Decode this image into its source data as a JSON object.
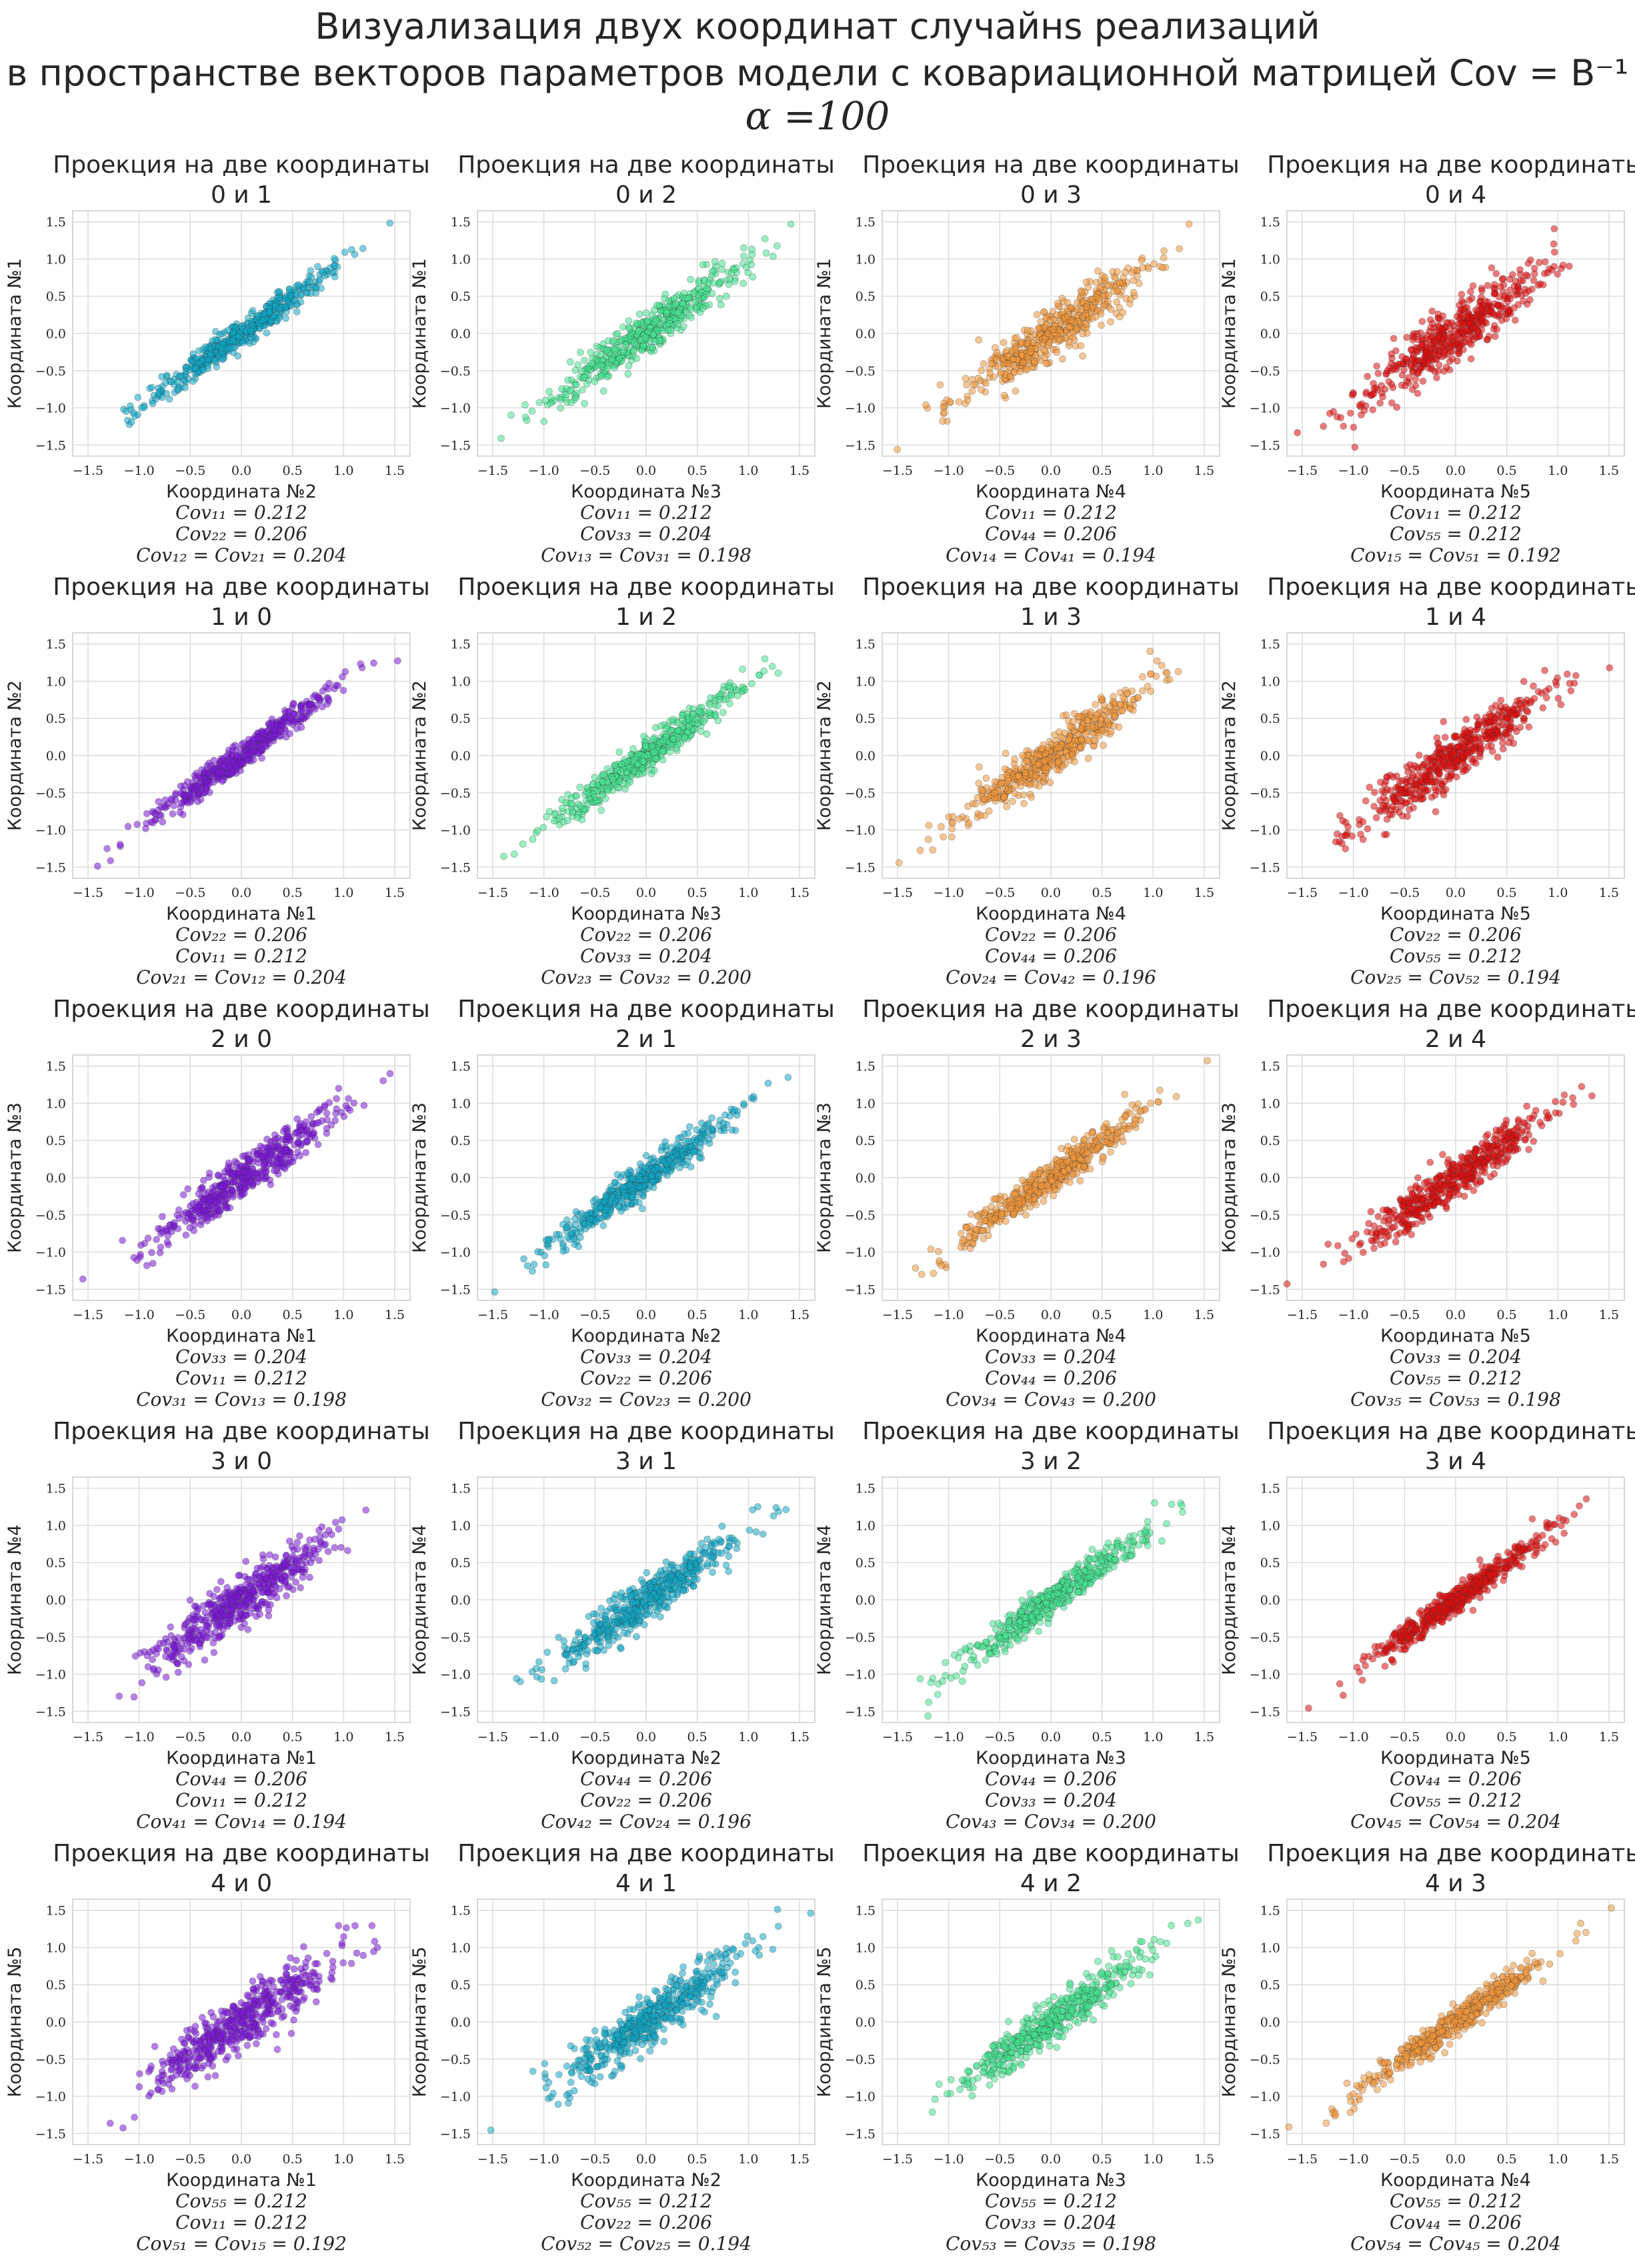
{
  "title": {
    "line1": "Визуализация двух координат случайнs реализаций",
    "line2": "в пространстве векторов параметров модели с ковариационной матрицей Cov = B⁻¹",
    "line3": "α =100"
  },
  "subplot_title_prefix": "Проекция на две координаты",
  "colors": [
    "#7b16d9",
    "#0ea7c7",
    "#44e38f",
    "#f3983a",
    "#e00d0d"
  ],
  "chart_data": {
    "type": "scatter",
    "n_points_per_panel": 500,
    "xlim": [
      -1.65,
      1.65
    ],
    "ylim": [
      -1.65,
      1.65
    ],
    "ticks": [
      -1.5,
      -1.0,
      -0.5,
      0.0,
      0.5,
      1.0,
      1.5
    ],
    "tick_labels": [
      "−1.5",
      "−1.0",
      "−0.5",
      "0.0",
      "0.5",
      "1.0",
      "1.5"
    ],
    "grid": true,
    "rows": [
      {
        "coord": 0,
        "ylabel": "Координата №1"
      },
      {
        "coord": 1,
        "ylabel": "Координата №2"
      },
      {
        "coord": 2,
        "ylabel": "Координата №3"
      },
      {
        "coord": 3,
        "ylabel": "Координата №4"
      },
      {
        "coord": 4,
        "ylabel": "Координата №5"
      }
    ],
    "panels": [
      [
        {
          "pair": "0 и 1",
          "color_idx": 1,
          "xlabel": "Координата №2",
          "cov1": "Cov₁₁ = 0.212",
          "cov2": "Cov₂₂ = 0.206",
          "cov3": "Cov₁₂ = Cov₂₁ = 0.204",
          "corr": 0.98
        },
        {
          "pair": "0 и 2",
          "color_idx": 2,
          "xlabel": "Координата №3",
          "cov1": "Cov₁₁ = 0.212",
          "cov2": "Cov₃₃ = 0.204",
          "cov3": "Cov₁₃ = Cov₃₁ = 0.198",
          "corr": 0.95
        },
        {
          "pair": "0 и 3",
          "color_idx": 3,
          "xlabel": "Координата №4",
          "cov1": "Cov₁₁ = 0.212",
          "cov2": "Cov₄₄ = 0.206",
          "cov3": "Cov₁₄ = Cov₄₁ = 0.194",
          "corr": 0.93
        },
        {
          "pair": "0 и 4",
          "color_idx": 4,
          "xlabel": "Координата №5",
          "cov1": "Cov₁₁ = 0.212",
          "cov2": "Cov₅₅ = 0.212",
          "cov3": "Cov₁₅ = Cov₅₁ = 0.192",
          "corr": 0.91
        }
      ],
      [
        {
          "pair": "1 и 0",
          "color_idx": 0,
          "xlabel": "Координата №1",
          "cov1": "Cov₂₂ = 0.206",
          "cov2": "Cov₁₁ = 0.212",
          "cov3": "Cov₂₁ = Cov₁₂ = 0.204",
          "corr": 0.98
        },
        {
          "pair": "1 и 2",
          "color_idx": 2,
          "xlabel": "Координата №3",
          "cov1": "Cov₂₂ = 0.206",
          "cov2": "Cov₃₃ = 0.204",
          "cov3": "Cov₂₃ = Cov₃₂ = 0.200",
          "corr": 0.97
        },
        {
          "pair": "1 и 3",
          "color_idx": 3,
          "xlabel": "Координата №4",
          "cov1": "Cov₂₂ = 0.206",
          "cov2": "Cov₄₄ = 0.206",
          "cov3": "Cov₂₄ = Cov₄₂ = 0.196",
          "corr": 0.95
        },
        {
          "pair": "1 и 4",
          "color_idx": 4,
          "xlabel": "Координата №5",
          "cov1": "Cov₂₂ = 0.206",
          "cov2": "Cov₅₅ = 0.212",
          "cov3": "Cov₂₅ = Cov₅₂ = 0.194",
          "corr": 0.93
        }
      ],
      [
        {
          "pair": "2 и 0",
          "color_idx": 0,
          "xlabel": "Координата №1",
          "cov1": "Cov₃₃ = 0.204",
          "cov2": "Cov₁₁ = 0.212",
          "cov3": "Cov₃₁ = Cov₁₃ = 0.198",
          "corr": 0.95
        },
        {
          "pair": "2 и 1",
          "color_idx": 1,
          "xlabel": "Координата №2",
          "cov1": "Cov₃₃ = 0.204",
          "cov2": "Cov₂₂ = 0.206",
          "cov3": "Cov₃₂ = Cov₂₃ = 0.200",
          "corr": 0.97
        },
        {
          "pair": "2 и 3",
          "color_idx": 3,
          "xlabel": "Координата №4",
          "cov1": "Cov₃₃ = 0.204",
          "cov2": "Cov₄₄ = 0.206",
          "cov3": "Cov₃₄ = Cov₄₃ = 0.200",
          "corr": 0.97
        },
        {
          "pair": "2 и 4",
          "color_idx": 4,
          "xlabel": "Координата №5",
          "cov1": "Cov₃₃ = 0.204",
          "cov2": "Cov₅₅ = 0.212",
          "cov3": "Cov₃₅ = Cov₅₃ = 0.198",
          "corr": 0.95
        }
      ],
      [
        {
          "pair": "3 и 0",
          "color_idx": 0,
          "xlabel": "Координата №1",
          "cov1": "Cov₄₄ = 0.206",
          "cov2": "Cov₁₁ = 0.212",
          "cov3": "Cov₄₁ = Cov₁₄ = 0.194",
          "corr": 0.93
        },
        {
          "pair": "3 и 1",
          "color_idx": 1,
          "xlabel": "Координата №2",
          "cov1": "Cov₄₄ = 0.206",
          "cov2": "Cov₂₂ = 0.206",
          "cov3": "Cov₄₂ = Cov₂₄ = 0.196",
          "corr": 0.95
        },
        {
          "pair": "3 и 2",
          "color_idx": 2,
          "xlabel": "Координата №3",
          "cov1": "Cov₄₄ = 0.206",
          "cov2": "Cov₃₃ = 0.204",
          "cov3": "Cov₄₃ = Cov₃₄ = 0.200",
          "corr": 0.97
        },
        {
          "pair": "3 и 4",
          "color_idx": 4,
          "xlabel": "Координата №5",
          "cov1": "Cov₄₄ = 0.206",
          "cov2": "Cov₅₅ = 0.212",
          "cov3": "Cov₄₅ = Cov₅₄ = 0.204",
          "corr": 0.98
        }
      ],
      [
        {
          "pair": "4 и 0",
          "color_idx": 0,
          "xlabel": "Координата №1",
          "cov1": "Cov₅₅ = 0.212",
          "cov2": "Cov₁₁ = 0.212",
          "cov3": "Cov₅₁ = Cov₁₅ = 0.192",
          "corr": 0.91
        },
        {
          "pair": "4 и 1",
          "color_idx": 1,
          "xlabel": "Координата №2",
          "cov1": "Cov₅₅ = 0.212",
          "cov2": "Cov₂₂ = 0.206",
          "cov3": "Cov₅₂ = Cov₂₅ = 0.194",
          "corr": 0.93
        },
        {
          "pair": "4 и 2",
          "color_idx": 2,
          "xlabel": "Координата №3",
          "cov1": "Cov₅₅ = 0.212",
          "cov2": "Cov₃₃ = 0.204",
          "cov3": "Cov₅₃ = Cov₃₅ = 0.198",
          "corr": 0.95
        },
        {
          "pair": "4 и 3",
          "color_idx": 3,
          "xlabel": "Координата №4",
          "cov1": "Cov₅₅ = 0.212",
          "cov2": "Cov₄₄ = 0.206",
          "cov3": "Cov₅₄ = Cov₄₅ = 0.204",
          "corr": 0.98
        }
      ]
    ]
  }
}
